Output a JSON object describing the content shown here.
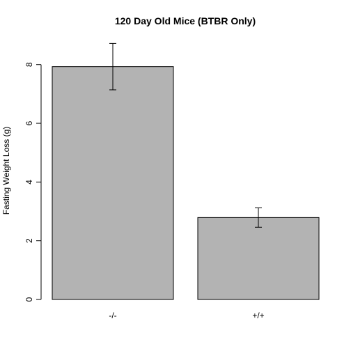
{
  "chart_data": {
    "type": "bar",
    "title": "120 Day Old Mice (BTBR Only)",
    "xlabel": "",
    "ylabel": "Fasting Weight Loss (g)",
    "categories": [
      "-/-",
      "+/+"
    ],
    "values": [
      7.93,
      2.79
    ],
    "error_low": [
      7.14,
      2.46
    ],
    "error_high": [
      8.72,
      3.12
    ],
    "ylim": [
      0,
      8.8
    ],
    "yticks": [
      0,
      2,
      4,
      6,
      8
    ],
    "bar_color": "#b3b3b3",
    "grid": false,
    "legend": "none"
  }
}
